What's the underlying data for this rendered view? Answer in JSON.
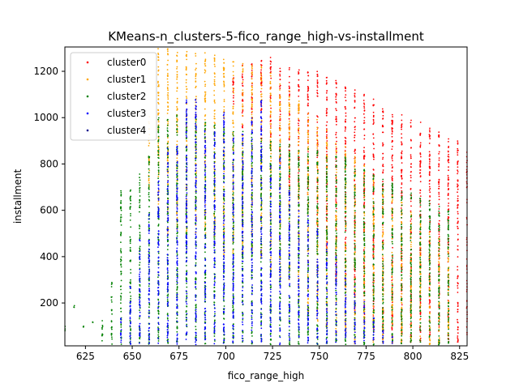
{
  "chart_data": {
    "type": "scatter",
    "title": "KMeans-n_clusters-5-fico_range_high-vs-installment",
    "xlabel": "fico_range_high",
    "ylabel": "installment",
    "xlim": [
      614,
      829
    ],
    "ylim": [
      15,
      1305
    ],
    "x_ticks": [
      625,
      650,
      675,
      700,
      725,
      750,
      775,
      800,
      825
    ],
    "y_ticks": [
      200,
      400,
      600,
      800,
      1000,
      1200
    ],
    "grid": false,
    "legend_position": "top-left",
    "series": [
      {
        "name": "cluster0",
        "color": "#ff0000"
      },
      {
        "name": "cluster1",
        "color": "#ffa500"
      },
      {
        "name": "cluster2",
        "color": "#008000"
      },
      {
        "name": "cluster3",
        "color": "#0000ff"
      },
      {
        "name": "cluster4",
        "color": "#00008b"
      }
    ],
    "x_columns": [
      614,
      619,
      624,
      629,
      634,
      639,
      644,
      649,
      654,
      659,
      664,
      669,
      674,
      679,
      684,
      689,
      694,
      699,
      704,
      709,
      714,
      719,
      724,
      729,
      734,
      739,
      744,
      749,
      754,
      759,
      764,
      769,
      774,
      779,
      784,
      789,
      794,
      799,
      804,
      809,
      814,
      819,
      824,
      829
    ],
    "column_profiles": [
      {
        "x": 614,
        "cluster2": [
          [
            80,
            100
          ]
        ]
      },
      {
        "x": 619,
        "cluster2": [
          [
            180,
            190
          ]
        ]
      },
      {
        "x": 624,
        "cluster2": [
          [
            95,
            100
          ]
        ]
      },
      {
        "x": 629,
        "cluster2": [
          [
            115,
            120
          ]
        ]
      },
      {
        "x": 634,
        "cluster2": [
          [
            20,
            130
          ]
        ]
      },
      {
        "x": 639,
        "cluster2": [
          [
            20,
            290
          ]
        ]
      },
      {
        "x": 644,
        "cluster2": [
          [
            20,
            690
          ]
        ],
        "cluster3": [
          [
            20,
            150
          ]
        ]
      },
      {
        "x": 649,
        "cluster2": [
          [
            20,
            690
          ]
        ],
        "cluster3": [
          [
            20,
            300
          ]
        ]
      },
      {
        "x": 654,
        "cluster2": [
          [
            20,
            760
          ]
        ],
        "cluster3": [
          [
            20,
            480
          ]
        ]
      },
      {
        "x": 659,
        "cluster2": [
          [
            20,
            860
          ]
        ],
        "cluster3": [
          [
            20,
            600
          ]
        ],
        "cluster1": [
          [
            700,
            1010
          ]
        ]
      },
      {
        "x": 664,
        "cluster2": [
          [
            20,
            1000
          ]
        ],
        "cluster3": [
          [
            20,
            740
          ]
        ],
        "cluster1": [
          [
            600,
            1300
          ]
        ]
      },
      {
        "x": 669,
        "cluster2": [
          [
            20,
            1010
          ]
        ],
        "cluster3": [
          [
            20,
            870
          ]
        ],
        "cluster1": [
          [
            500,
            1300
          ]
        ]
      },
      {
        "x": 674,
        "cluster2": [
          [
            20,
            1020
          ]
        ],
        "cluster3": [
          [
            20,
            900
          ]
        ],
        "cluster1": [
          [
            500,
            1300
          ]
        ]
      },
      {
        "x": 679,
        "cluster2": [
          [
            20,
            1020
          ]
        ],
        "cluster3": [
          [
            20,
            1080
          ]
        ],
        "cluster1": [
          [
            500,
            1300
          ]
        ]
      },
      {
        "x": 684,
        "cluster2": [
          [
            20,
            1000
          ]
        ],
        "cluster3": [
          [
            20,
            1080
          ]
        ],
        "cluster1": [
          [
            500,
            1290
          ]
        ]
      },
      {
        "x": 689,
        "cluster2": [
          [
            20,
            980
          ]
        ],
        "cluster3": [
          [
            20,
            950
          ]
        ],
        "cluster1": [
          [
            500,
            1280
          ]
        ]
      },
      {
        "x": 694,
        "cluster2": [
          [
            20,
            970
          ]
        ],
        "cluster3": [
          [
            20,
            950
          ]
        ],
        "cluster1": [
          [
            450,
            1270
          ]
        ]
      },
      {
        "x": 699,
        "cluster2": [
          [
            20,
            960
          ]
        ],
        "cluster3": [
          [
            20,
            1030
          ]
        ],
        "cluster1": [
          [
            400,
            1260
          ]
        ]
      },
      {
        "x": 704,
        "cluster2": [
          [
            20,
            950
          ]
        ],
        "cluster3": [
          [
            20,
            940
          ]
        ],
        "cluster1": [
          [
            400,
            1250
          ]
        ],
        "cluster0": [
          [
            1030,
            1200
          ]
        ]
      },
      {
        "x": 709,
        "cluster2": [
          [
            20,
            940
          ]
        ],
        "cluster3": [
          [
            20,
            940
          ]
        ],
        "cluster1": [
          [
            400,
            1240
          ]
        ],
        "cluster0": [
          [
            950,
            1230
          ]
        ]
      },
      {
        "x": 714,
        "cluster2": [
          [
            20,
            930
          ]
        ],
        "cluster3": [
          [
            20,
            1000
          ]
        ],
        "cluster1": [
          [
            400,
            1230
          ]
        ],
        "cluster0": [
          [
            950,
            1240
          ]
        ]
      },
      {
        "x": 719,
        "cluster2": [
          [
            20,
            920
          ]
        ],
        "cluster3": [
          [
            20,
            1080
          ]
        ],
        "cluster1": [
          [
            400,
            1220
          ]
        ],
        "cluster0": [
          [
            900,
            1250
          ]
        ]
      },
      {
        "x": 724,
        "cluster2": [
          [
            20,
            910
          ]
        ],
        "cluster3": [
          [
            20,
            800
          ]
        ],
        "cluster1": [
          [
            300,
            1200
          ]
        ],
        "cluster0": [
          [
            850,
            1260
          ]
        ]
      },
      {
        "x": 729,
        "cluster2": [
          [
            20,
            900
          ]
        ],
        "cluster3": [
          [
            20,
            830
          ]
        ],
        "cluster1": [
          [
            300,
            1180
          ]
        ],
        "cluster0": [
          [
            800,
            1240
          ]
        ]
      },
      {
        "x": 734,
        "cluster2": [
          [
            20,
            890
          ]
        ],
        "cluster3": [
          [
            20,
            700
          ]
        ],
        "cluster1": [
          [
            300,
            1120
          ]
        ],
        "cluster0": [
          [
            700,
            1230
          ]
        ]
      },
      {
        "x": 739,
        "cluster2": [
          [
            20,
            880
          ]
        ],
        "cluster3": [
          [
            20,
            640
          ]
        ],
        "cluster1": [
          [
            200,
            1080
          ]
        ],
        "cluster0": [
          [
            650,
            1240
          ]
        ]
      },
      {
        "x": 744,
        "cluster2": [
          [
            20,
            870
          ]
        ],
        "cluster3": [
          [
            20,
            580
          ]
        ],
        "cluster1": [
          [
            150,
            1040
          ]
        ],
        "cluster0": [
          [
            600,
            1220
          ]
        ]
      },
      {
        "x": 749,
        "cluster2": [
          [
            20,
            860
          ]
        ],
        "cluster3": [
          [
            20,
            520
          ]
        ],
        "cluster1": [
          [
            100,
            1000
          ]
        ],
        "cluster0": [
          [
            500,
            1200
          ]
        ]
      },
      {
        "x": 754,
        "cluster2": [
          [
            20,
            850
          ]
        ],
        "cluster3": [
          [
            20,
            460
          ]
        ],
        "cluster1": [
          [
            80,
            960
          ]
        ],
        "cluster0": [
          [
            400,
            1180
          ]
        ]
      },
      {
        "x": 759,
        "cluster2": [
          [
            20,
            840
          ]
        ],
        "cluster3": [
          [
            20,
            400
          ]
        ],
        "cluster1": [
          [
            60,
            920
          ]
        ],
        "cluster0": [
          [
            300,
            1160
          ]
        ]
      },
      {
        "x": 764,
        "cluster2": [
          [
            20,
            830
          ]
        ],
        "cluster3": [
          [
            20,
            340
          ]
        ],
        "cluster1": [
          [
            40,
            880
          ]
        ],
        "cluster0": [
          [
            200,
            1140
          ]
        ]
      },
      {
        "x": 769,
        "cluster2": [
          [
            20,
            800
          ]
        ],
        "cluster3": [
          [
            20,
            280
          ]
        ],
        "cluster1": [
          [
            20,
            840
          ]
        ],
        "cluster0": [
          [
            150,
            1120
          ]
        ]
      },
      {
        "x": 774,
        "cluster2": [
          [
            20,
            780
          ]
        ],
        "cluster3": [
          [
            20,
            220
          ]
        ],
        "cluster1": [
          [
            20,
            800
          ]
        ],
        "cluster0": [
          [
            100,
            1100
          ]
        ]
      },
      {
        "x": 779,
        "cluster2": [
          [
            20,
            760
          ]
        ],
        "cluster3": [
          [
            20,
            160
          ]
        ],
        "cluster1": [
          [
            20,
            760
          ]
        ],
        "cluster0": [
          [
            60,
            1080
          ]
        ]
      },
      {
        "x": 784,
        "cluster2": [
          [
            20,
            740
          ]
        ],
        "cluster3": [
          [
            20,
            100
          ]
        ],
        "cluster1": [
          [
            20,
            720
          ]
        ],
        "cluster0": [
          [
            40,
            1060
          ]
        ]
      },
      {
        "x": 789,
        "cluster2": [
          [
            20,
            720
          ]
        ],
        "cluster3": [
          [
            20,
            60
          ]
        ],
        "cluster1": [
          [
            20,
            680
          ]
        ],
        "cluster0": [
          [
            20,
            1040
          ]
        ]
      },
      {
        "x": 794,
        "cluster2": [
          [
            20,
            700
          ]
        ],
        "cluster1": [
          [
            20,
            640
          ]
        ],
        "cluster0": [
          [
            20,
            1020
          ]
        ]
      },
      {
        "x": 799,
        "cluster2": [
          [
            20,
            680
          ]
        ],
        "cluster1": [
          [
            20,
            600
          ]
        ],
        "cluster0": [
          [
            20,
            1000
          ]
        ]
      },
      {
        "x": 804,
        "cluster2": [
          [
            20,
            660
          ]
        ],
        "cluster1": [
          [
            20,
            560
          ]
        ],
        "cluster0": [
          [
            20,
            980
          ]
        ]
      },
      {
        "x": 809,
        "cluster2": [
          [
            20,
            640
          ]
        ],
        "cluster1": [
          [
            20,
            520
          ]
        ],
        "cluster0": [
          [
            20,
            960
          ]
        ]
      },
      {
        "x": 814,
        "cluster2": [
          [
            20,
            620
          ]
        ],
        "cluster1": [
          [
            20,
            480
          ]
        ],
        "cluster0": [
          [
            20,
            940
          ]
        ]
      },
      {
        "x": 819,
        "cluster2": [
          [
            20,
            600
          ]
        ],
        "cluster1": [
          [
            20,
            440
          ]
        ],
        "cluster0": [
          [
            20,
            920
          ]
        ]
      },
      {
        "x": 824,
        "cluster0": [
          [
            20,
            900
          ]
        ]
      },
      {
        "x": 829,
        "cluster0": [
          [
            20,
            880
          ]
        ]
      }
    ]
  }
}
